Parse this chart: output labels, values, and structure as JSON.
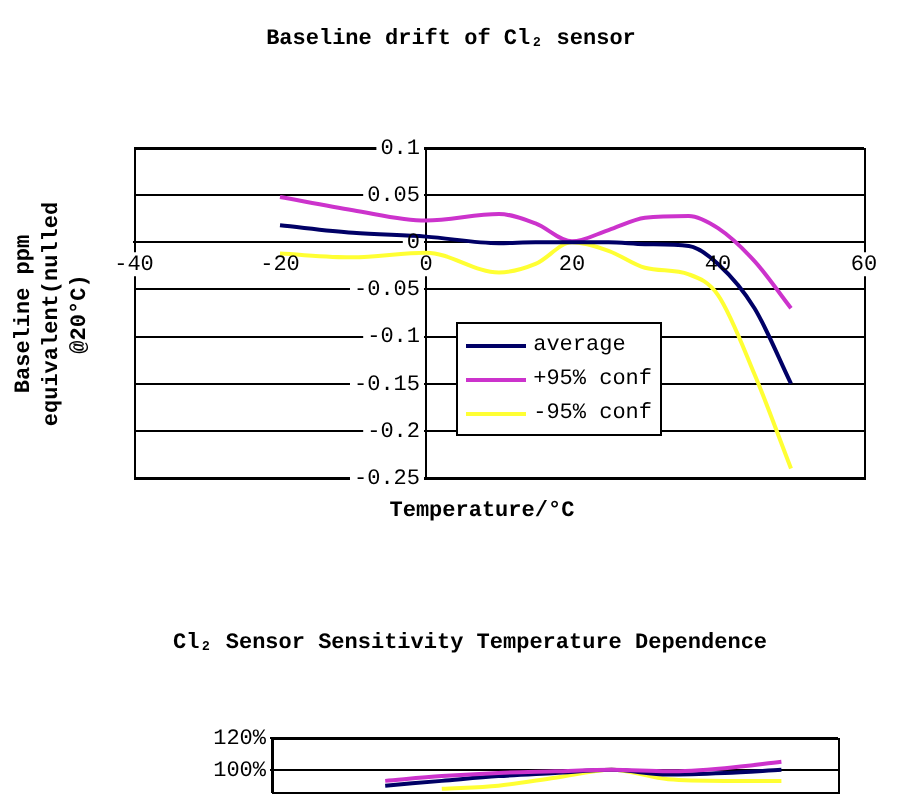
{
  "chart_data": [
    {
      "type": "line",
      "title": "Baseline drift of Cl₂ sensor",
      "xlabel": "Temperature/°C",
      "ylabel": "Baseline ppm equivalent(nulled @20°C)",
      "x": [
        -20,
        -10,
        0,
        10,
        15,
        20,
        25,
        30,
        36,
        40,
        45,
        50
      ],
      "series": [
        {
          "name": "average",
          "color": "#000066",
          "values": [
            0.018,
            0.01,
            0.006,
            -0.001,
            0,
            0,
            0,
            -0.002,
            -0.004,
            -0.023,
            -0.07,
            -0.15
          ]
        },
        {
          "name": "+95% conf",
          "color": "#cc33cc",
          "values": [
            0.048,
            0.034,
            0.023,
            0.03,
            0.02,
            0.001,
            0.013,
            0.026,
            0.028,
            0.015,
            -0.02,
            -0.07
          ]
        },
        {
          "name": "-95% conf",
          "color": "#ffff33",
          "values": [
            -0.012,
            -0.016,
            -0.011,
            -0.032,
            -0.023,
            0,
            -0.009,
            -0.027,
            -0.034,
            -0.056,
            -0.14,
            -0.24
          ]
        }
      ],
      "xlim": [
        -40,
        60
      ],
      "xticks": [
        -40,
        -20,
        0,
        20,
        40,
        60
      ],
      "ylim": [
        -0.25,
        0.1
      ],
      "yticks": [
        -0.25,
        -0.2,
        -0.15,
        -0.1,
        -0.05,
        0,
        0.05,
        0.1
      ],
      "grid": "y",
      "legend": "bottom"
    },
    {
      "type": "line",
      "title": "Cl₂ Sensor Sensitivity Temperature Dependence",
      "categories": [
        null,
        null,
        null,
        null,
        null,
        null,
        null,
        null,
        null,
        null,
        null
      ],
      "series": [
        {
          "color": "#cc33cc",
          "values": [
            null,
            null,
            0.93,
            0.96,
            0.98,
            0.99,
            1.0,
            0.99,
            1.01,
            1.05,
            null
          ]
        },
        {
          "color": "#000066",
          "values": [
            null,
            null,
            0.9,
            0.93,
            0.96,
            0.98,
            1.0,
            0.97,
            0.98,
            1.0,
            null
          ]
        },
        {
          "color": "#ffff33",
          "values": [
            null,
            null,
            null,
            0.88,
            0.9,
            0.95,
            1.0,
            0.94,
            0.93,
            0.93,
            null
          ]
        }
      ],
      "ylim": [
        0.86,
        1.2
      ],
      "yticks": [
        {
          "value": 1,
          "label": "100%"
        },
        {
          "value": 1.2,
          "label": "120%"
        }
      ],
      "grid": "y",
      "tick_labels": "y"
    }
  ]
}
